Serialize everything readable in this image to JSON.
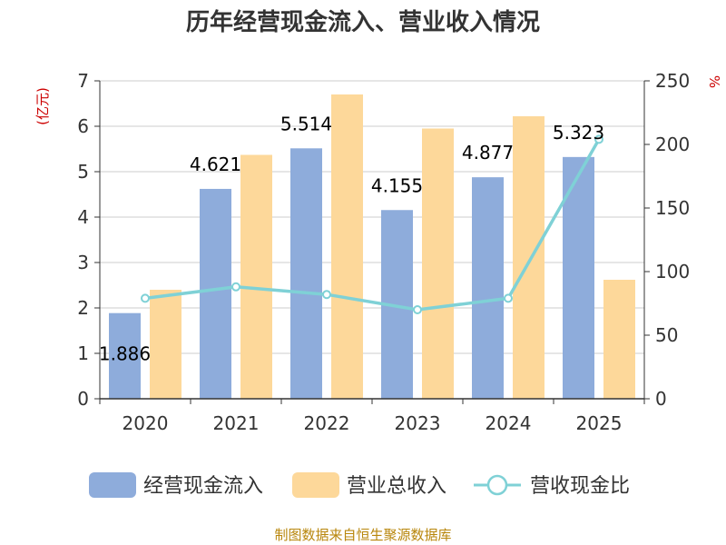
{
  "chart_data": {
    "type": "bar",
    "title": "历年经营现金流入、营业收入情况",
    "categories": [
      "2020",
      "2021",
      "2022",
      "2023",
      "2024",
      "2025"
    ],
    "y_left": {
      "unit": "(亿元)",
      "ylim": [
        0,
        7
      ],
      "ticks": [
        "0",
        "1",
        "2",
        "3",
        "4",
        "5",
        "6",
        "7"
      ]
    },
    "y_right": {
      "unit": "%",
      "ylim": [
        0,
        250
      ],
      "ticks": [
        "0",
        "50",
        "100",
        "150",
        "200",
        "250"
      ]
    },
    "series": [
      {
        "name": "经营现金流入",
        "type": "bar",
        "axis": "left",
        "color": "#8eacdb",
        "values": [
          1.886,
          4.621,
          5.514,
          4.155,
          4.877,
          5.323
        ],
        "labels": [
          "1.886",
          "4.621",
          "5.514",
          "4.155",
          "4.877",
          "5.323"
        ]
      },
      {
        "name": "营业总收入",
        "type": "bar",
        "axis": "left",
        "color": "#fdd89a",
        "values": [
          2.4,
          5.37,
          6.7,
          5.95,
          6.22,
          2.62
        ]
      },
      {
        "name": "营收现金比",
        "type": "line",
        "axis": "right",
        "color": "#7fd1d6",
        "values": [
          79,
          88,
          82,
          70,
          79,
          204
        ]
      }
    ],
    "grid": true,
    "legend": "bottom",
    "source": "制图数据来自恒生聚源数据库"
  }
}
